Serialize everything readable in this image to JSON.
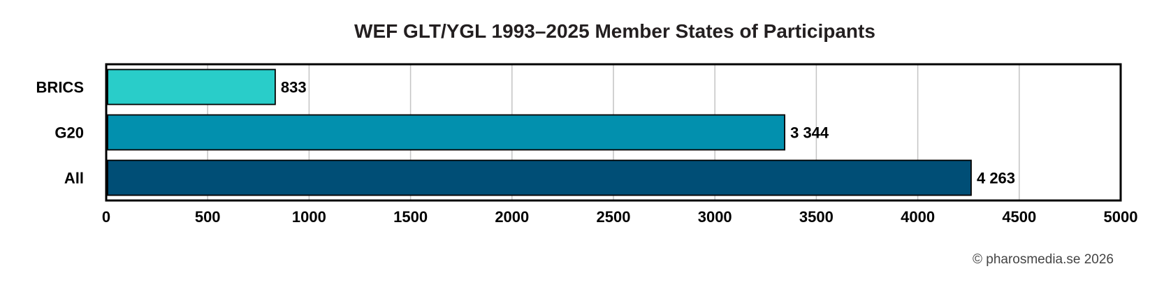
{
  "chart_data": {
    "type": "bar",
    "orientation": "horizontal",
    "title": "WEF GLT/YGL 1993–2025 Member States of Participants",
    "xlabel": "",
    "ylabel": "",
    "xlim": [
      0,
      5000
    ],
    "x_ticks": [
      "0",
      "500",
      "1000",
      "1500",
      "2000",
      "2500",
      "3000",
      "3500",
      "4000",
      "4500",
      "5000"
    ],
    "grid": "vertical",
    "categories": [
      "BRICS",
      "G20",
      "All"
    ],
    "values": [
      833,
      3344,
      4263
    ],
    "value_labels": [
      "833",
      "3 344",
      "4 263"
    ],
    "colors": [
      "#29cdc9",
      "#0290ae",
      "#004e76"
    ]
  },
  "footer": {
    "credit": "© pharosmedia.se 2026"
  }
}
